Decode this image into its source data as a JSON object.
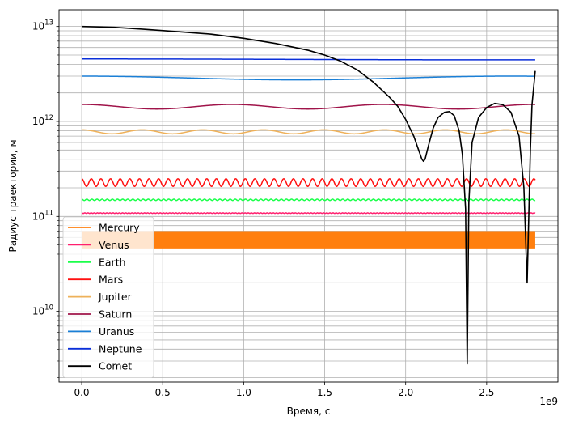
{
  "chart_data": {
    "type": "line",
    "title": "",
    "xlabel": "Время, с",
    "ylabel": "Радиус траектории, м",
    "x_offset_label": "1e9",
    "xlim": [
      -0.14,
      2.94
    ],
    "ylim": [
      1800000000.0,
      15000000000000.0
    ],
    "yscale": "log",
    "grid": true,
    "legend_position": "lower-left",
    "x_ticks": [
      {
        "value": 0.0,
        "label": "0.0"
      },
      {
        "value": 0.5,
        "label": "0.5"
      },
      {
        "value": 1.0,
        "label": "1.0"
      },
      {
        "value": 1.5,
        "label": "1.5"
      },
      {
        "value": 2.0,
        "label": "2.0"
      },
      {
        "value": 2.5,
        "label": "2.5"
      }
    ],
    "y_major_ticks": [
      {
        "value": 10000000000.0,
        "base": "10",
        "exp": "10"
      },
      {
        "value": 100000000000.0,
        "base": "10",
        "exp": "11"
      },
      {
        "value": 1000000000000.0,
        "base": "10",
        "exp": "12"
      },
      {
        "value": 10000000000000.0,
        "base": "10",
        "exp": "13"
      }
    ],
    "series": [
      {
        "name": "Mercury",
        "color": "#ff7f0e",
        "r_min": 46000000000.0,
        "r_max": 70000000000.0,
        "period": 0.0076
      },
      {
        "name": "Venus",
        "color": "#ff1f6e",
        "r_min": 107500000000.0,
        "r_max": 109000000000.0,
        "period": 0.0194
      },
      {
        "name": "Earth",
        "color": "#1aff4a",
        "r_min": 147000000000.0,
        "r_max": 152000000000.0,
        "period": 0.0316
      },
      {
        "name": "Mars",
        "color": "#ff1010",
        "r_min": 207000000000.0,
        "r_max": 249000000000.0,
        "period": 0.0594
      },
      {
        "name": "Jupiter",
        "color": "#eeb15a",
        "r_min": 740000000000.0,
        "r_max": 816000000000.0,
        "period": 0.374
      },
      {
        "name": "Saturn",
        "color": "#a0144a",
        "r_min": 1350000000000.0,
        "r_max": 1510000000000.0,
        "period": 0.93
      },
      {
        "name": "Uranus",
        "color": "#1a7fd6",
        "r_min": 2740000000000.0,
        "r_max": 3000000000000.0,
        "period": 2.65
      },
      {
        "name": "Neptune",
        "color": "#0a2fd9",
        "r_min": 4450000000000.0,
        "r_max": 4550000000000.0,
        "period": 5.2
      },
      {
        "name": "Comet",
        "color": "#000000",
        "points": [
          [
            0.0,
            10000000000000.0
          ],
          [
            0.2,
            9800000000000.0
          ],
          [
            0.4,
            9300000000000.0
          ],
          [
            0.6,
            8800000000000.0
          ],
          [
            0.8,
            8300000000000.0
          ],
          [
            1.0,
            7500000000000.0
          ],
          [
            1.2,
            6600000000000.0
          ],
          [
            1.4,
            5600000000000.0
          ],
          [
            1.5,
            5000000000000.0
          ],
          [
            1.6,
            4300000000000.0
          ],
          [
            1.7,
            3500000000000.0
          ],
          [
            1.8,
            2600000000000.0
          ],
          [
            1.9,
            1800000000000.0
          ],
          [
            1.95,
            1450000000000.0
          ],
          [
            2.0,
            1050000000000.0
          ],
          [
            2.05,
            700000000000.0
          ],
          [
            2.08,
            500000000000.0
          ],
          [
            2.1,
            400000000000.0
          ],
          [
            2.11,
            380000000000.0
          ],
          [
            2.12,
            400000000000.0
          ],
          [
            2.14,
            550000000000.0
          ],
          [
            2.17,
            850000000000.0
          ],
          [
            2.2,
            1100000000000.0
          ],
          [
            2.24,
            1250000000000.0
          ],
          [
            2.27,
            1270000000000.0
          ],
          [
            2.3,
            1150000000000.0
          ],
          [
            2.33,
            800000000000.0
          ],
          [
            2.35,
            450000000000.0
          ],
          [
            2.37,
            120000000000.0
          ],
          [
            2.38,
            2800000000.0
          ],
          [
            2.39,
            140000000000.0
          ],
          [
            2.41,
            600000000000.0
          ],
          [
            2.45,
            1100000000000.0
          ],
          [
            2.5,
            1400000000000.0
          ],
          [
            2.55,
            1550000000000.0
          ],
          [
            2.6,
            1500000000000.0
          ],
          [
            2.65,
            1250000000000.0
          ],
          [
            2.7,
            700000000000.0
          ],
          [
            2.73,
            200000000000.0
          ],
          [
            2.75,
            20000000000.0
          ],
          [
            2.76,
            100000000000.0
          ],
          [
            2.77,
            500000000000.0
          ],
          [
            2.78,
            1500000000000.0
          ],
          [
            2.8,
            3400000000000.0
          ]
        ]
      }
    ]
  }
}
